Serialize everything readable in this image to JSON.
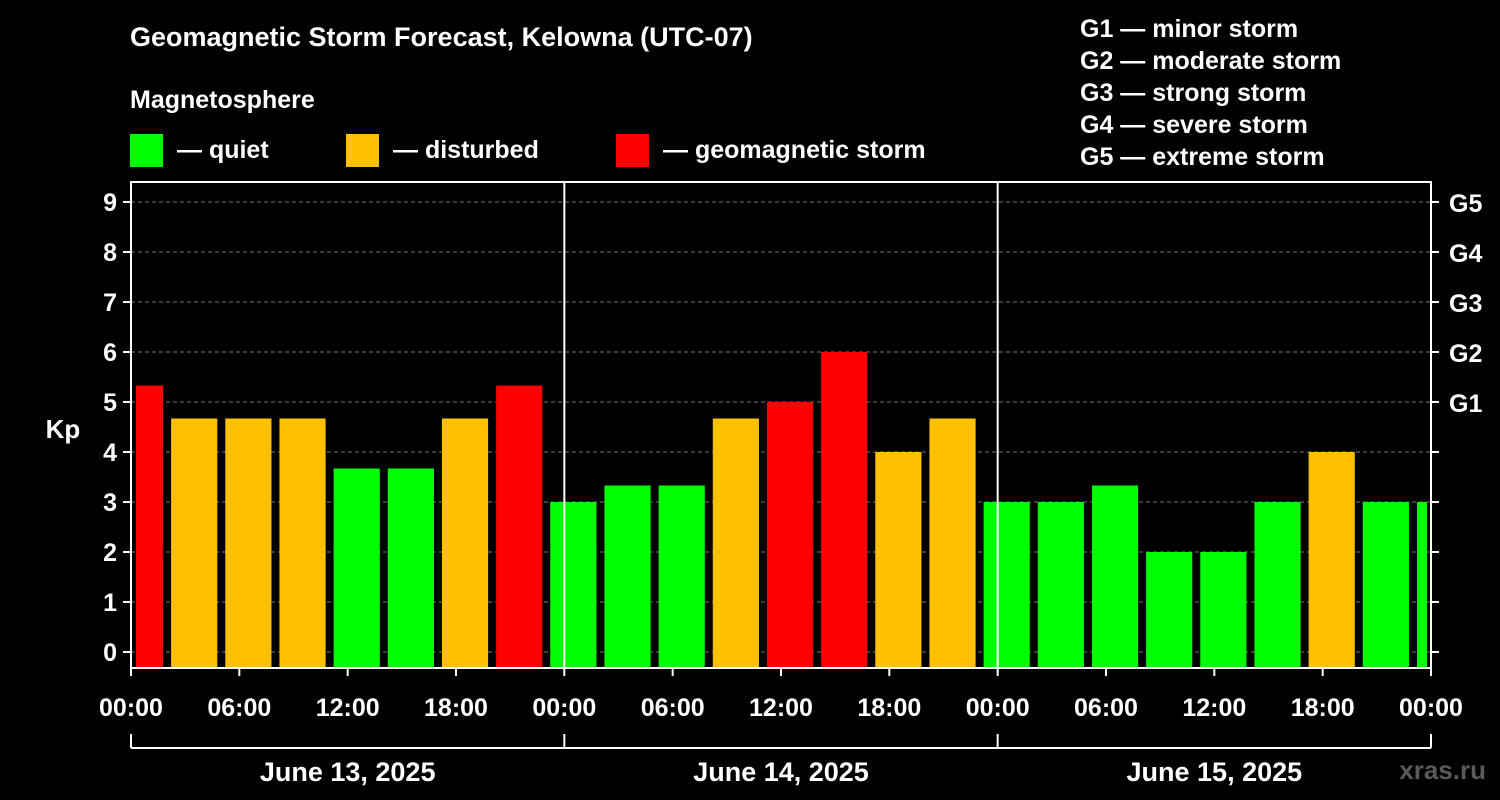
{
  "title": "Geomagnetic Storm Forecast, Kelowna (UTC-07)",
  "subtitle": "Magnetosphere",
  "legend": [
    {
      "label": "— quiet",
      "color": "#00ff00"
    },
    {
      "label": "— disturbed",
      "color": "#ffc000"
    },
    {
      "label": "— geomagnetic storm",
      "color": "#ff0000"
    }
  ],
  "g_legend": [
    "G1 — minor storm",
    "G2 — moderate storm",
    "G3 — strong storm",
    "G4 — severe storm",
    "G5 — extreme storm"
  ],
  "watermark": "xras.ru",
  "chart_data": {
    "type": "bar",
    "title": "Geomagnetic Storm Forecast, Kelowna (UTC-07)",
    "ylabel": "Kp",
    "ylim": [
      0,
      9
    ],
    "y_ticks": [
      "0",
      "1",
      "2",
      "3",
      "4",
      "5",
      "6",
      "7",
      "8",
      "9"
    ],
    "right_ticks": [
      {
        "kp": 5,
        "label": "G1"
      },
      {
        "kp": 6,
        "label": "G2"
      },
      {
        "kp": 7,
        "label": "G3"
      },
      {
        "kp": 8,
        "label": "G4"
      },
      {
        "kp": 9,
        "label": "G5"
      }
    ],
    "x_tick_labels": [
      "00:00",
      "06:00",
      "12:00",
      "18:00",
      "00:00",
      "06:00",
      "12:00",
      "18:00",
      "00:00",
      "06:00",
      "12:00",
      "18:00",
      "00:00"
    ],
    "x_tick_hours": [
      0,
      6,
      12,
      18,
      24,
      30,
      36,
      42,
      48,
      54,
      60,
      66,
      72
    ],
    "day_labels": [
      "June 13, 2025",
      "June 14, 2025",
      "June 15, 2025"
    ],
    "x_range_hours": [
      0,
      72
    ],
    "bars": [
      {
        "start": 0,
        "end": 2,
        "kp": 5.33,
        "level": "storm"
      },
      {
        "start": 2,
        "end": 5,
        "kp": 4.67,
        "level": "disturbed"
      },
      {
        "start": 5,
        "end": 8,
        "kp": 4.67,
        "level": "disturbed"
      },
      {
        "start": 8,
        "end": 11,
        "kp": 4.67,
        "level": "disturbed"
      },
      {
        "start": 11,
        "end": 14,
        "kp": 3.67,
        "level": "quiet"
      },
      {
        "start": 14,
        "end": 17,
        "kp": 3.67,
        "level": "quiet"
      },
      {
        "start": 17,
        "end": 20,
        "kp": 4.67,
        "level": "disturbed"
      },
      {
        "start": 20,
        "end": 23,
        "kp": 5.33,
        "level": "storm"
      },
      {
        "start": 23,
        "end": 26,
        "kp": 3.0,
        "level": "quiet"
      },
      {
        "start": 26,
        "end": 29,
        "kp": 3.33,
        "level": "quiet"
      },
      {
        "start": 29,
        "end": 32,
        "kp": 3.33,
        "level": "quiet"
      },
      {
        "start": 32,
        "end": 35,
        "kp": 4.67,
        "level": "disturbed"
      },
      {
        "start": 35,
        "end": 38,
        "kp": 5.0,
        "level": "storm"
      },
      {
        "start": 38,
        "end": 41,
        "kp": 6.0,
        "level": "storm"
      },
      {
        "start": 41,
        "end": 44,
        "kp": 4.0,
        "level": "disturbed"
      },
      {
        "start": 44,
        "end": 47,
        "kp": 4.67,
        "level": "disturbed"
      },
      {
        "start": 47,
        "end": 50,
        "kp": 3.0,
        "level": "quiet"
      },
      {
        "start": 50,
        "end": 53,
        "kp": 3.0,
        "level": "quiet"
      },
      {
        "start": 53,
        "end": 56,
        "kp": 3.33,
        "level": "quiet"
      },
      {
        "start": 56,
        "end": 59,
        "kp": 2.0,
        "level": "quiet"
      },
      {
        "start": 59,
        "end": 62,
        "kp": 2.0,
        "level": "quiet"
      },
      {
        "start": 62,
        "end": 65,
        "kp": 3.0,
        "level": "quiet"
      },
      {
        "start": 65,
        "end": 68,
        "kp": 4.0,
        "level": "disturbed"
      },
      {
        "start": 68,
        "end": 71,
        "kp": 3.0,
        "level": "quiet"
      },
      {
        "start": 71,
        "end": 72,
        "kp": 3.0,
        "level": "quiet"
      }
    ],
    "level_colors": {
      "quiet": "#00ff00",
      "disturbed": "#ffc000",
      "storm": "#ff0000"
    }
  }
}
